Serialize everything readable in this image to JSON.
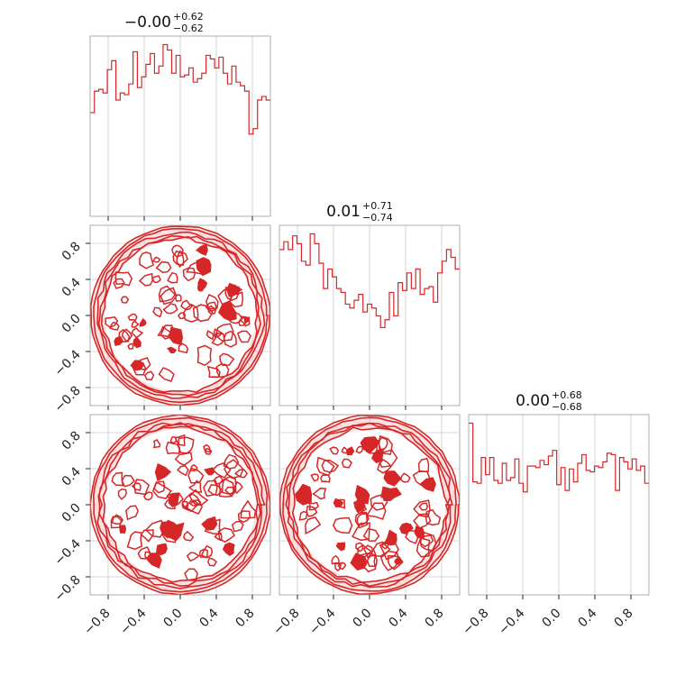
{
  "chart_data": {
    "type": "corner",
    "parameters": 3,
    "colors": {
      "series": "#d62728",
      "frame": "#9a9a9a",
      "grid": "#cccccc"
    },
    "axis_range": [
      -1,
      1
    ],
    "grid": true,
    "tick_values": [
      -0.8,
      -0.4,
      0.0,
      0.4,
      0.8
    ],
    "tick_labels": [
      "−0.8",
      "−0.4",
      "0.0",
      "0.4",
      "0.8"
    ],
    "marginals": [
      {
        "title": {
          "median": "−0.00",
          "plus": "+0.62",
          "minus": "−0.62"
        },
        "bin_range": [
          -1,
          1
        ],
        "counts": [
          58,
          70,
          71,
          69,
          82,
          87,
          65,
          69,
          68,
          74,
          92,
          72,
          78,
          85,
          91,
          80,
          84,
          96,
          93,
          80,
          90,
          78,
          79,
          83,
          75,
          77,
          80,
          90,
          88,
          83,
          89,
          80,
          74,
          84,
          75,
          73,
          70,
          46,
          49,
          65,
          67,
          65
        ]
      },
      {
        "title": {
          "median": "0.01",
          "plus": "+0.71",
          "minus": "−0.74"
        },
        "bin_range": [
          -1,
          1
        ],
        "counts": [
          80,
          84,
          80,
          87,
          83,
          74,
          72,
          88,
          83,
          73,
          60,
          70,
          66,
          60,
          58,
          52,
          50,
          54,
          57,
          48,
          52,
          50,
          46,
          40,
          44,
          58,
          46,
          63,
          59,
          68,
          60,
          70,
          57,
          60,
          61,
          53,
          68,
          74,
          80,
          76,
          70
        ]
      },
      {
        "title": {
          "median": "0.00",
          "plus": "+0.68",
          "minus": "−0.68"
        },
        "bin_range": [
          -1,
          1
        ],
        "counts": [
          120,
          79,
          78,
          96,
          84,
          96,
          80,
          78,
          92,
          80,
          82,
          95,
          78,
          72,
          90,
          90,
          89,
          94,
          91,
          97,
          101,
          77,
          89,
          73,
          88,
          79,
          92,
          98,
          87,
          86,
          90,
          89,
          93,
          99,
          98,
          73,
          96,
          93,
          88,
          95,
          87,
          90,
          78
        ]
      }
    ],
    "joint_2d": [
      {
        "x_param": 0,
        "y_param": 1,
        "support": "disk",
        "radius": 1.0,
        "contour_levels": 3
      },
      {
        "x_param": 0,
        "y_param": 2,
        "support": "disk",
        "radius": 1.0,
        "contour_levels": 3
      },
      {
        "x_param": 1,
        "y_param": 2,
        "support": "disk",
        "radius": 1.0,
        "contour_levels": 3
      }
    ]
  }
}
